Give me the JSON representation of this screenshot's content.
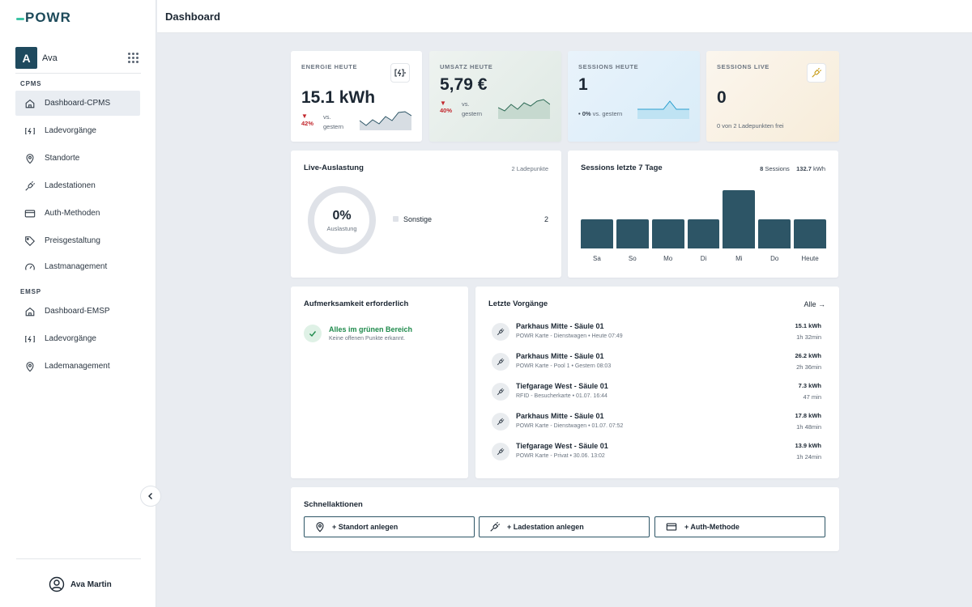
{
  "app": {
    "logo": "POWR"
  },
  "user": {
    "initial": "A",
    "name": "Ava",
    "full_name": "Ava Martin"
  },
  "sidebar": {
    "sections": [
      {
        "label": "CPMS",
        "items": [
          {
            "label": "Dashboard-CPMS",
            "icon": "home-icon",
            "active": true
          },
          {
            "label": "Ladevorgänge",
            "icon": "charging-icon"
          },
          {
            "label": "Standorte",
            "icon": "location-pin-icon"
          },
          {
            "label": "Ladestationen",
            "icon": "plug-icon"
          },
          {
            "label": "Auth-Methoden",
            "icon": "credit-card-icon"
          },
          {
            "label": "Preisgestaltung",
            "icon": "price-tag-icon"
          },
          {
            "label": "Lastmanagement",
            "icon": "gauge-icon"
          }
        ]
      },
      {
        "label": "EMSP",
        "items": [
          {
            "label": "Dashboard-EMSP",
            "icon": "home-icon"
          },
          {
            "label": "Ladevorgänge",
            "icon": "charging-icon"
          },
          {
            "label": "Lademanagement",
            "icon": "location-pin-icon"
          }
        ]
      }
    ]
  },
  "header": {
    "title": "Dashboard"
  },
  "kpis": [
    {
      "label": "ENERGIE HEUTE",
      "value": "15.1 kWh",
      "trend_arrow": "▼",
      "trend_pct": "42%",
      "trend_text": "vs. gestern",
      "icon": "battery-charging-icon"
    },
    {
      "label": "UMSATZ HEUTE",
      "value": "5,79 €",
      "trend_arrow": "▼",
      "trend_pct": "40%",
      "trend_text": "vs. gestern"
    },
    {
      "label": "SESSIONS HEUTE",
      "value": "1",
      "trend_pct": "• 0%",
      "trend_text": "vs. gestern"
    },
    {
      "label": "SESSIONS LIVE",
      "value": "0",
      "note": "0 von 2 Ladepunkten frei",
      "icon": "plug-icon"
    }
  ],
  "live": {
    "title": "Live-Auslastung",
    "subtitle": "2 Ladepunkte",
    "value": "0%",
    "value_label": "Auslastung",
    "legend_label": "Sonstige",
    "legend_value": "2",
    "utilization": 0
  },
  "sessions_chart": {
    "title": "Sessions letzte 7 Tage",
    "sessions_count": "8",
    "sessions_label": "Sessions",
    "kwh_value": "132.7",
    "kwh_unit": "kWh"
  },
  "chart_data": {
    "type": "bar",
    "title": "Sessions letzte 7 Tage",
    "categories": [
      "Sa",
      "So",
      "Mo",
      "Di",
      "Mi",
      "Do",
      "Heute"
    ],
    "values": [
      1,
      1,
      1,
      1,
      2,
      1,
      1
    ],
    "ylim": [
      0,
      2
    ],
    "grid": false
  },
  "attention": {
    "title": "Aufmerksamkeit erforderlich",
    "status_title": "Alles im grünen Bereich",
    "status_sub": "Keine offenen Punkte erkannt."
  },
  "recent": {
    "title": "Letzte Vorgänge",
    "all_link": "Alle →",
    "items": [
      {
        "title": "Parkhaus Mitte - Säule 01",
        "sub": "POWR Karte - Dienstwagen • Heute 07:49",
        "kwh": "15.1 kWh",
        "duration": "1h 32min"
      },
      {
        "title": "Parkhaus Mitte - Säule 01",
        "sub": "POWR Karte - Pool 1 • Gestern 08:03",
        "kwh": "26.2 kWh",
        "duration": "2h 36min"
      },
      {
        "title": "Tiefgarage West - Säule 01",
        "sub": "RFID - Besucherkarte • 01.07. 16:44",
        "kwh": "7.3 kWh",
        "duration": "47 min"
      },
      {
        "title": "Parkhaus Mitte - Säule 01",
        "sub": "POWR Karte - Dienstwagen • 01.07. 07:52",
        "kwh": "17.8 kWh",
        "duration": "1h 48min"
      },
      {
        "title": "Tiefgarage West - Säule 01",
        "sub": "POWR Karte - Privat • 30.06. 13:02",
        "kwh": "13.9 kWh",
        "duration": "1h 24min"
      }
    ]
  },
  "quick_actions": {
    "title": "Schnellaktionen",
    "buttons": [
      {
        "label": "+ Standort anlegen",
        "icon": "location-pin-icon"
      },
      {
        "label": "+ Ladestation anlegen",
        "icon": "plug-icon"
      },
      {
        "label": "+ Auth-Methode",
        "icon": "credit-card-icon"
      }
    ]
  },
  "colors": {
    "primary": "#2d5566",
    "accent": "#3cc4a5",
    "negative": "#c2272d",
    "positive": "#1f8a4c"
  }
}
